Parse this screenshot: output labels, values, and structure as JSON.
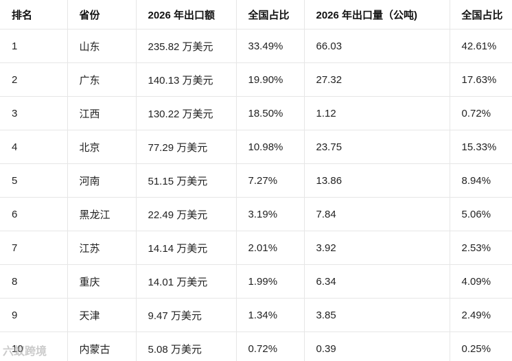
{
  "table": {
    "headers": [
      "排名",
      "省份",
      "2026 年出口额",
      "全国占比",
      "2026 年出口量（公吨)",
      "全国占比"
    ],
    "rows": [
      [
        "1",
        "山东",
        "235.82 万美元",
        "33.49%",
        "66.03",
        "42.61%"
      ],
      [
        "2",
        "广东",
        "140.13 万美元",
        "19.90%",
        "27.32",
        "17.63%"
      ],
      [
        "3",
        "江西",
        "130.22 万美元",
        "18.50%",
        "1.12",
        "0.72%"
      ],
      [
        "4",
        "北京",
        "77.29 万美元",
        "10.98%",
        "23.75",
        "15.33%"
      ],
      [
        "5",
        "河南",
        "51.15 万美元",
        "7.27%",
        "13.86",
        "8.94%"
      ],
      [
        "6",
        "黑龙江",
        "22.49 万美元",
        "3.19%",
        "7.84",
        "5.06%"
      ],
      [
        "7",
        "江苏",
        "14.14 万美元",
        "2.01%",
        "3.92",
        "2.53%"
      ],
      [
        "8",
        "重庆",
        "14.01 万美元",
        "1.99%",
        "6.34",
        "4.09%"
      ],
      [
        "9",
        "天津",
        "9.47 万美元",
        "1.34%",
        "3.85",
        "2.49%"
      ],
      [
        "10",
        "内蒙古",
        "5.08 万美元",
        "0.72%",
        "0.39",
        "0.25%"
      ]
    ]
  },
  "watermark": "六蚁跨境"
}
